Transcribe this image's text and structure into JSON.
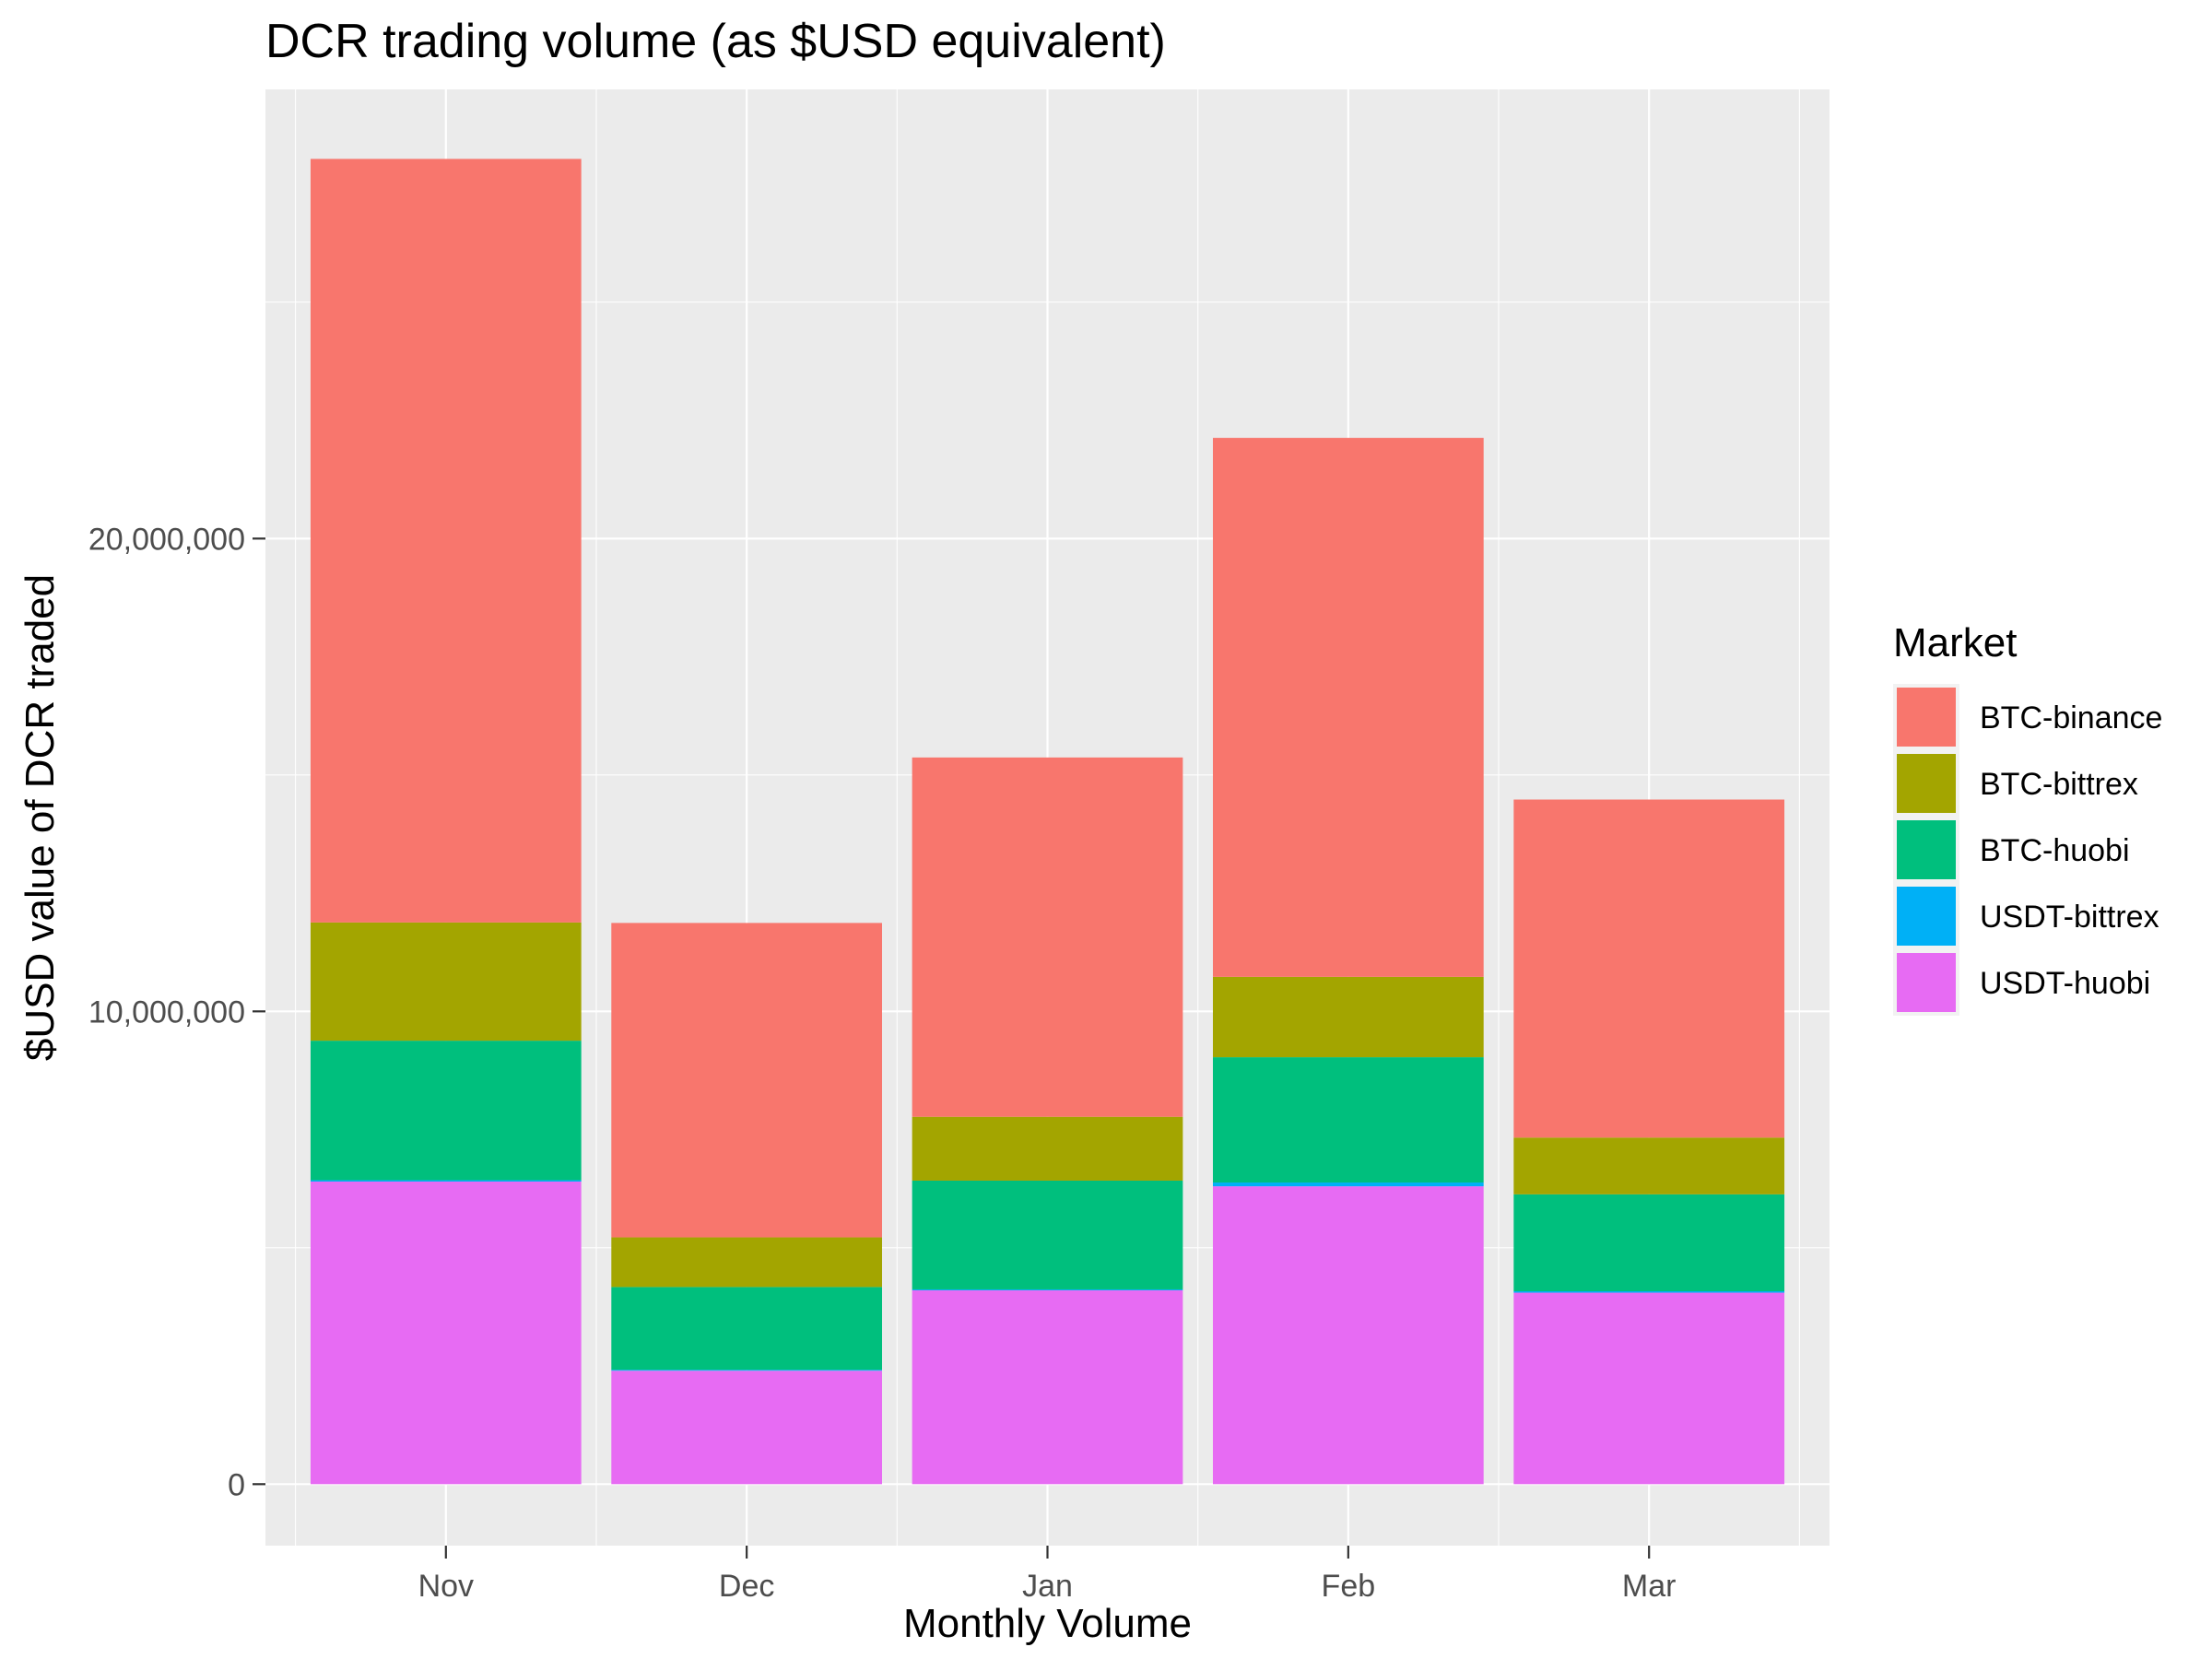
{
  "chart_data": {
    "type": "bar",
    "stacked": true,
    "title": "DCR trading volume (as $USD equivalent)",
    "xlabel": "Monthly Volume",
    "ylabel": "$USD value of DCR traded",
    "categories": [
      "Nov",
      "Dec",
      "Jan",
      "Feb",
      "Mar"
    ],
    "ylim": [
      -1300000,
      29500000
    ],
    "yticks": [
      0,
      10000000,
      20000000
    ],
    "ytick_labels": [
      "0",
      "10,000,000",
      "20,000,000"
    ],
    "grid": true,
    "legend": {
      "title": "Market",
      "position": "right"
    },
    "stack_order": [
      "USDT-huobi",
      "USDT-bittrex",
      "BTC-huobi",
      "BTC-bittrex",
      "BTC-binance"
    ],
    "series": [
      {
        "name": "BTC-binance",
        "color": "#F8766D",
        "values": [
          16150000,
          6650000,
          7600000,
          11400000,
          7150000
        ]
      },
      {
        "name": "BTC-bittrex",
        "color": "#A3A500",
        "values": [
          2500000,
          1050000,
          1350000,
          1700000,
          1200000
        ]
      },
      {
        "name": "BTC-huobi",
        "color": "#00BF7D",
        "values": [
          2950000,
          1750000,
          2300000,
          2650000,
          2050000
        ]
      },
      {
        "name": "USDT-bittrex",
        "color": "#00B0F6",
        "values": [
          30000,
          20000,
          20000,
          80000,
          30000
        ]
      },
      {
        "name": "USDT-huobi",
        "color": "#E76BF3",
        "values": [
          6400000,
          2400000,
          4100000,
          6300000,
          4050000
        ]
      }
    ]
  }
}
